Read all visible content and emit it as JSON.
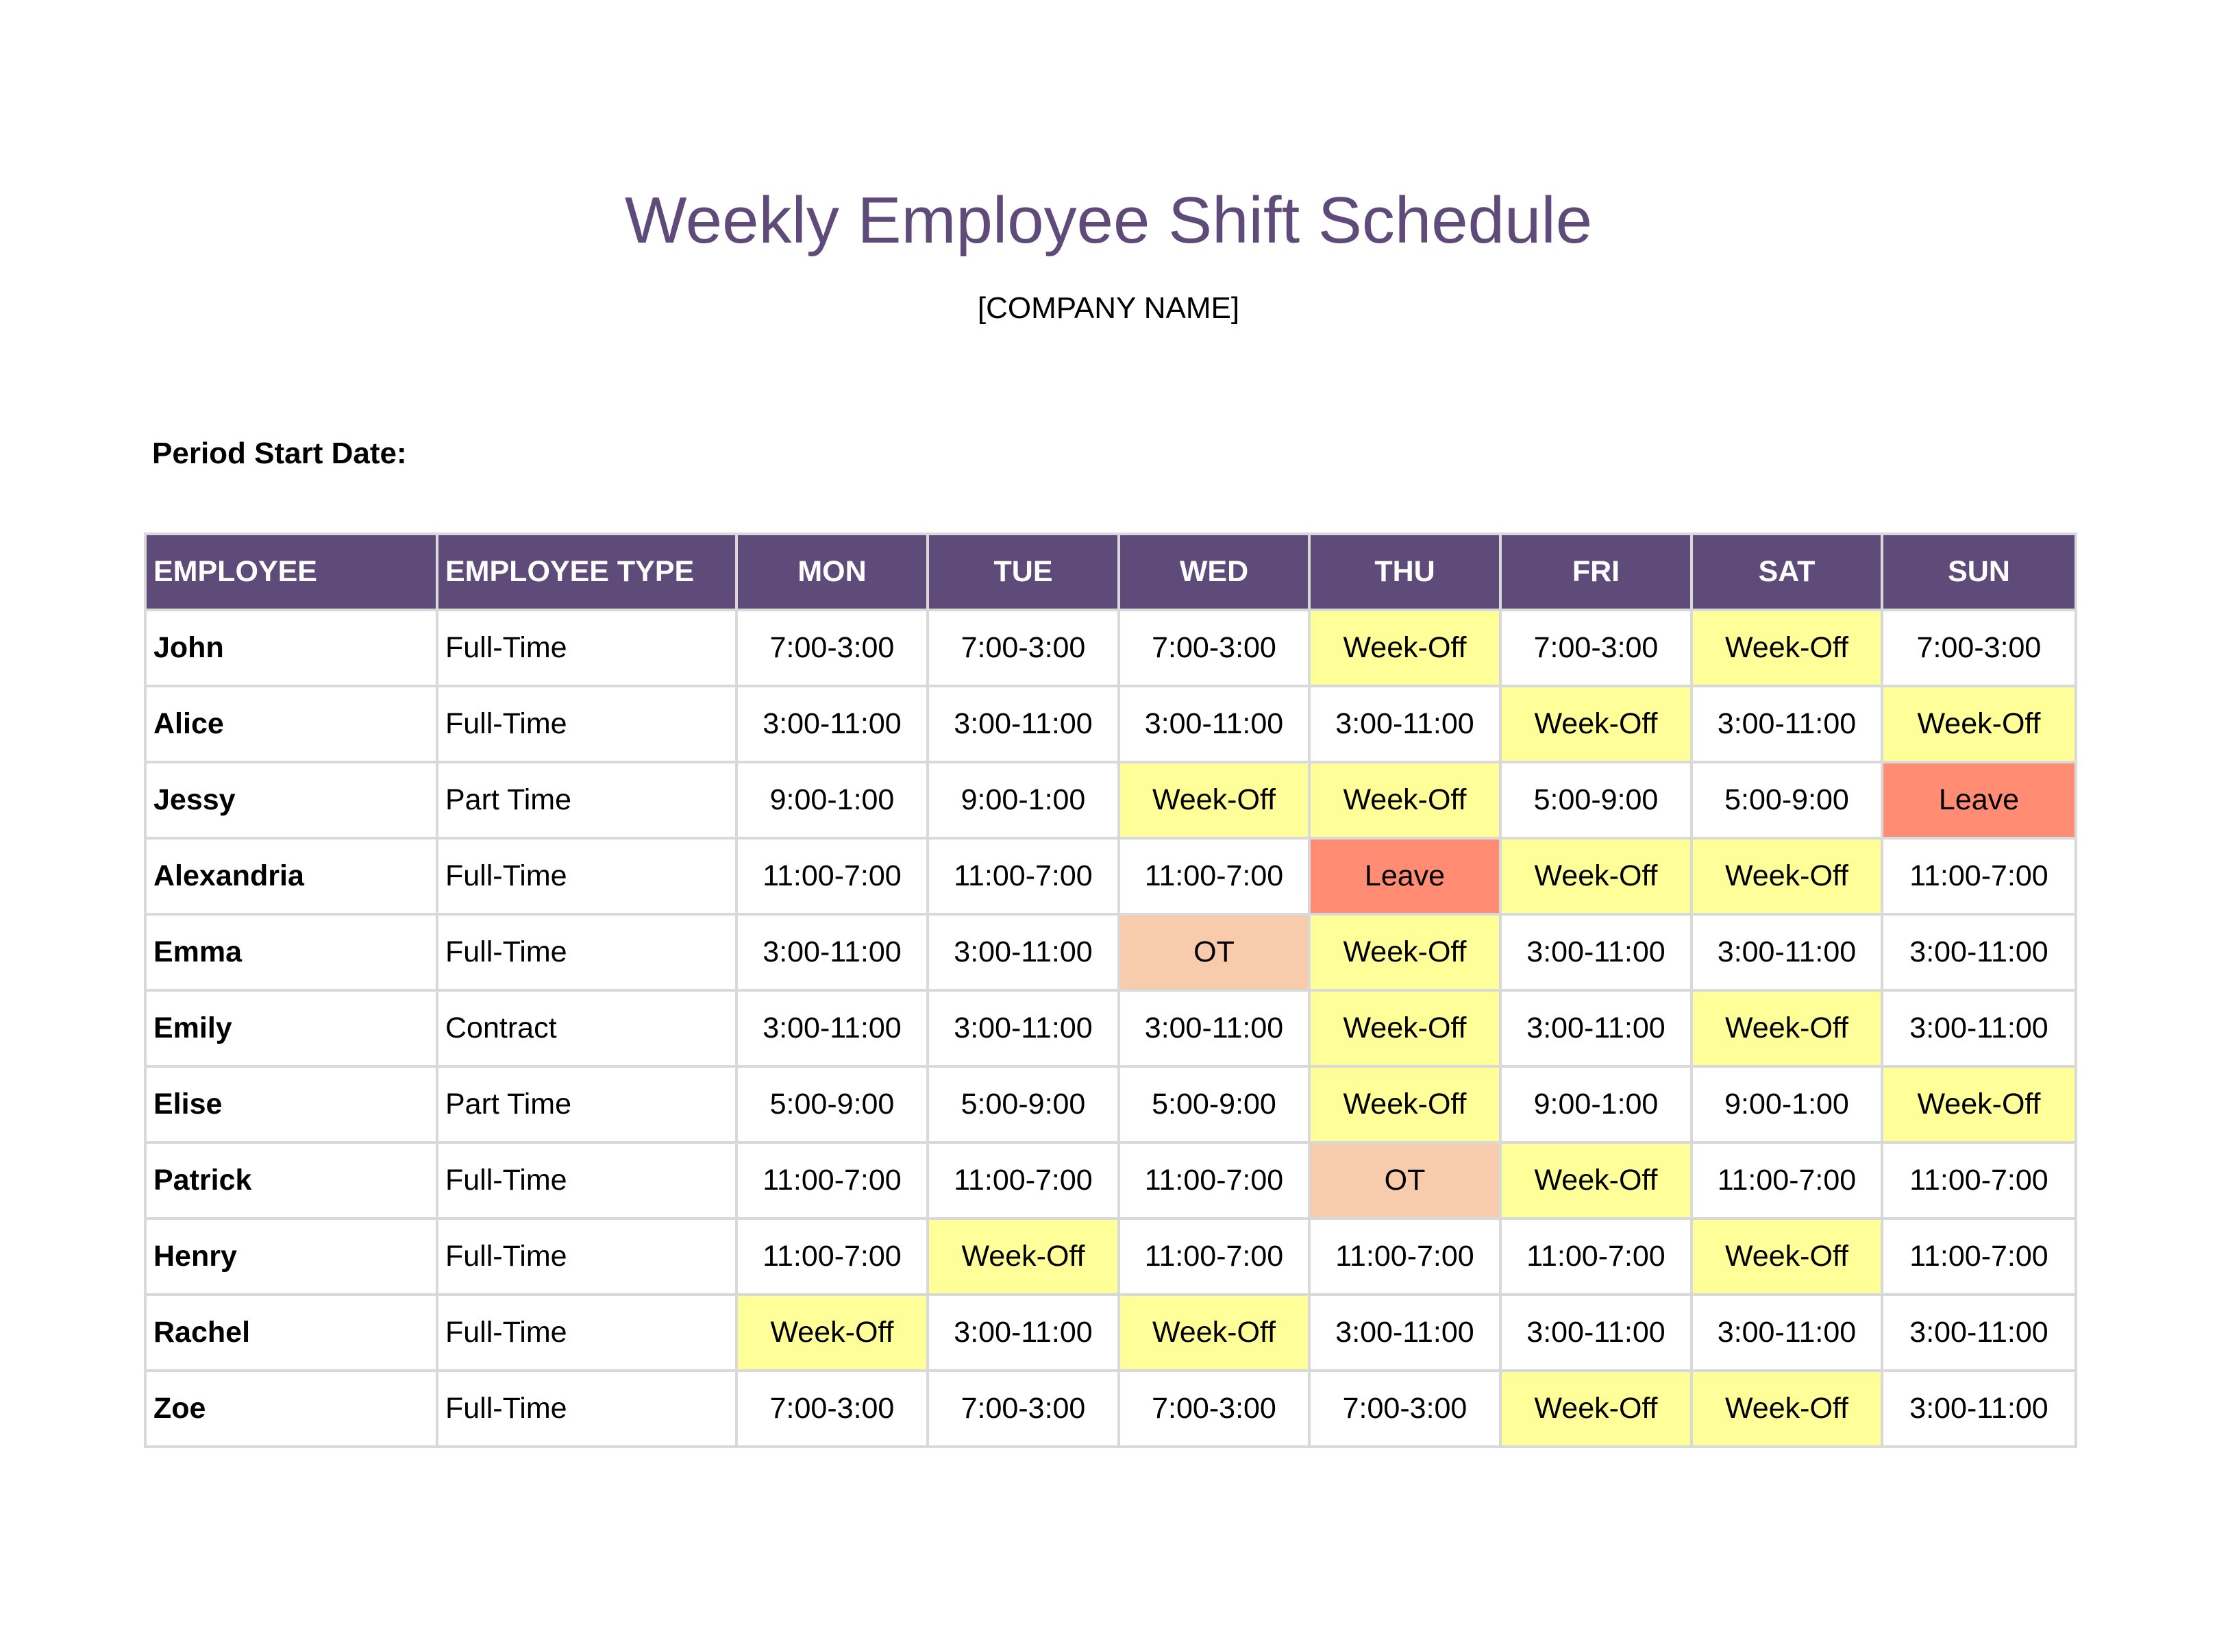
{
  "title": "Weekly Employee Shift Schedule",
  "company": "[COMPANY NAME]",
  "period_label": "Period Start Date:",
  "colors": {
    "header": "#5F4B7A",
    "Week-Off": "#FFFF99",
    "Leave": "#FF8C73",
    "OT": "#F8CBAD"
  },
  "headers": [
    "EMPLOYEE",
    "EMPLOYEE TYPE",
    "MON",
    "TUE",
    "WED",
    "THU",
    "FRI",
    "SAT",
    "SUN"
  ],
  "rows": [
    {
      "name": "John",
      "type": "Full-Time",
      "shifts": [
        "7:00-3:00",
        "7:00-3:00",
        "7:00-3:00",
        "Week-Off",
        "7:00-3:00",
        "Week-Off",
        "7:00-3:00"
      ]
    },
    {
      "name": "Alice",
      "type": "Full-Time",
      "shifts": [
        "3:00-11:00",
        "3:00-11:00",
        "3:00-11:00",
        "3:00-11:00",
        "Week-Off",
        "3:00-11:00",
        "Week-Off"
      ]
    },
    {
      "name": "Jessy",
      "type": "Part Time",
      "shifts": [
        "9:00-1:00",
        "9:00-1:00",
        "Week-Off",
        "Week-Off",
        "5:00-9:00",
        "5:00-9:00",
        "Leave"
      ]
    },
    {
      "name": "Alexandria",
      "type": "Full-Time",
      "shifts": [
        "11:00-7:00",
        "11:00-7:00",
        "11:00-7:00",
        "Leave",
        "Week-Off",
        "Week-Off",
        "11:00-7:00"
      ]
    },
    {
      "name": "Emma",
      "type": "Full-Time",
      "shifts": [
        "3:00-11:00",
        "3:00-11:00",
        "OT",
        "Week-Off",
        "3:00-11:00",
        "3:00-11:00",
        "3:00-11:00"
      ]
    },
    {
      "name": "Emily",
      "type": "Contract",
      "shifts": [
        "3:00-11:00",
        "3:00-11:00",
        "3:00-11:00",
        "Week-Off",
        "3:00-11:00",
        "Week-Off",
        "3:00-11:00"
      ]
    },
    {
      "name": "Elise",
      "type": "Part Time",
      "shifts": [
        "5:00-9:00",
        "5:00-9:00",
        "5:00-9:00",
        "Week-Off",
        "9:00-1:00",
        "9:00-1:00",
        "Week-Off"
      ]
    },
    {
      "name": "Patrick",
      "type": "Full-Time",
      "shifts": [
        "11:00-7:00",
        "11:00-7:00",
        "11:00-7:00",
        "OT",
        "Week-Off",
        "11:00-7:00",
        "11:00-7:00"
      ]
    },
    {
      "name": "Henry",
      "type": "Full-Time",
      "shifts": [
        "11:00-7:00",
        "Week-Off",
        "11:00-7:00",
        "11:00-7:00",
        "11:00-7:00",
        "Week-Off",
        "11:00-7:00"
      ]
    },
    {
      "name": "Rachel",
      "type": "Full-Time",
      "shifts": [
        "Week-Off",
        "3:00-11:00",
        "Week-Off",
        "3:00-11:00",
        "3:00-11:00",
        "3:00-11:00",
        "3:00-11:00"
      ]
    },
    {
      "name": "Zoe",
      "type": "Full-Time",
      "shifts": [
        "7:00-3:00",
        "7:00-3:00",
        "7:00-3:00",
        "7:00-3:00",
        "Week-Off",
        "Week-Off",
        "3:00-11:00"
      ]
    }
  ]
}
